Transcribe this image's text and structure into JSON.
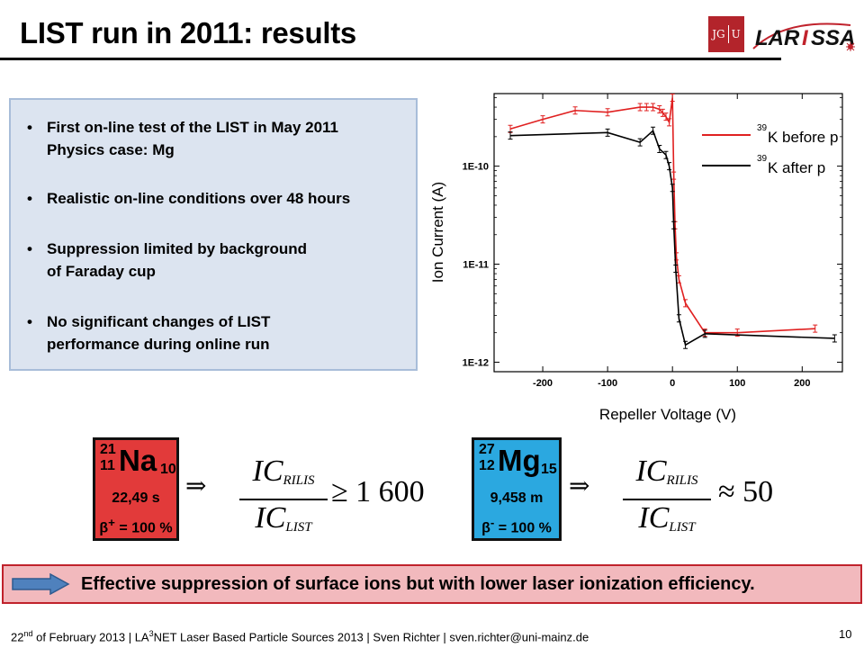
{
  "slide": {
    "title": "LIST run in 2011: results",
    "logos": {
      "jgu": "JG|U",
      "larissa": "LARISSA"
    },
    "bullets": [
      [
        "First on-line test of the LIST in May 2011",
        "Physics case: Mg"
      ],
      [
        "Realistic on-line conditions over 48 hours"
      ],
      [
        "Suppression limited by background",
        "of Faraday cup"
      ],
      [
        "No significant changes of LIST",
        "performance during online run"
      ]
    ],
    "bullet_glyph": "•"
  },
  "chart_data": {
    "type": "line",
    "xlabel": "Repeller Voltage (V)",
    "ylabel": "Ion Current (A)",
    "xlim": [
      -275,
      262
    ],
    "ylim": [
      8e-13,
      5.5e-10
    ],
    "yscale": "log",
    "xticks": [
      -200,
      -100,
      0,
      100,
      200
    ],
    "xtick_labels": [
      "-200",
      "-100",
      "0",
      "100",
      "200"
    ],
    "yticks": [
      1e-12,
      1e-11,
      1e-10
    ],
    "ytick_labels": [
      "1E-12",
      "1E-11",
      "1E-10"
    ],
    "grid": false,
    "legend_position": "top-right",
    "series": [
      {
        "name_mass": "39",
        "name_text": "K before p",
        "color": "#e02020",
        "x": [
          -250,
          -200,
          -150,
          -100,
          -50,
          -40,
          -30,
          -20,
          -15,
          -10,
          -5,
          0,
          2,
          4,
          6,
          10,
          20,
          50,
          100,
          220
        ],
        "y": [
          2.4e-10,
          3e-10,
          3.7e-10,
          3.55e-10,
          4e-10,
          4e-10,
          4e-10,
          3.8e-10,
          3.5e-10,
          3.2e-10,
          2.8e-10,
          5e-10,
          8e-11,
          2.5e-11,
          1.2e-11,
          7e-12,
          4e-12,
          2e-12,
          2e-12,
          2.2e-12
        ]
      },
      {
        "name_mass": "39",
        "name_text": "K after p",
        "color": "#000000",
        "x": [
          -250,
          -100,
          -50,
          -30,
          -20,
          -10,
          -5,
          0,
          2,
          5,
          10,
          20,
          50,
          250
        ],
        "y": [
          2.05e-10,
          2.2e-10,
          1.75e-10,
          2.3e-10,
          1.5e-10,
          1.3e-10,
          1e-10,
          6e-11,
          2.5e-11,
          9e-12,
          2.8e-12,
          1.5e-12,
          1.95e-12,
          1.75e-12
        ]
      }
    ]
  },
  "nuclides": {
    "na": {
      "mass": "21",
      "z": "11",
      "symbol": "Na",
      "n": "10",
      "halflife": "22,49 s",
      "decay_symbol": "β",
      "decay_sign": "+",
      "decay_text": " = 100 %",
      "color": "#e23a3a"
    },
    "mg": {
      "mass": "27",
      "z": "12",
      "symbol": "Mg",
      "n": "15",
      "halflife": "9,458 m",
      "decay_symbol": "β",
      "decay_sign": "-",
      "decay_text": " = 100 %",
      "color": "#2ba8e0"
    }
  },
  "formulas": {
    "implies": "⇒",
    "num_main": "IC",
    "num_sub": "RILIS",
    "den_main": "IC",
    "den_sub": "LIST",
    "na_relation": "≥ 1 600",
    "mg_relation": "≈ 50"
  },
  "conclusion": {
    "text": "Effective suppression of surface ions but with lower laser ionization efficiency.",
    "arrow_color": "#4f81bd"
  },
  "footer": {
    "day": "22",
    "day_suffix": "nd",
    "part1": " of February 2013 | LA",
    "sup3": "3",
    "part2": "NET Laser Based Particle Sources 2013 | Sven Richter | sven.richter@uni-mainz.de",
    "page": "10"
  }
}
